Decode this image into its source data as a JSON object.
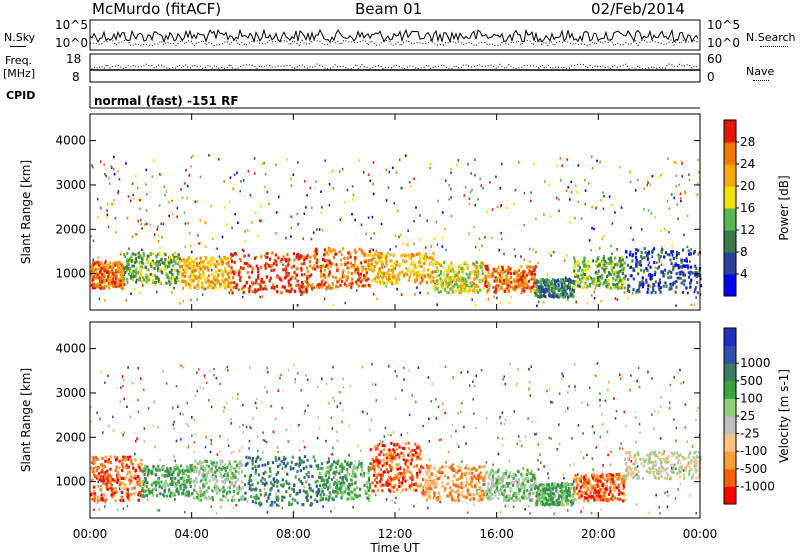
{
  "header": {
    "station": "McMurdo (fitACF)",
    "beam": "Beam 01",
    "date": "02/Feb/2014"
  },
  "left_labels": {
    "nsky": "N.Sky",
    "freq": "Freq.",
    "mhz": "[MHz]",
    "cpid": "CPID"
  },
  "right_labels": {
    "nsearch": "N.Search",
    "nave": "Nave"
  },
  "noise_panel": {
    "ytick_top": "10^5",
    "ytick_bottom": "10^0",
    "rtick_top": "10^5",
    "rtick_bottom": "10^0"
  },
  "freq_panel": {
    "ytick_top": "18",
    "ytick_bottom": "8",
    "rtick_top": "60",
    "rtick_bottom": "0"
  },
  "cpid_text": "normal (fast) -151 RF",
  "colors": {
    "power": [
      "#0000ff",
      "#2a3f9e",
      "#3a7a4a",
      "#59b74f",
      "#f2e000",
      "#f7a800",
      "#f37800",
      "#e21b00"
    ],
    "velocity": [
      "#ff0000",
      "#ff6000",
      "#ff9e30",
      "#ffc080",
      "#c0c0c0",
      "#8fd17a",
      "#3aa63a",
      "#3a8060",
      "#3050b0",
      "#2030c0"
    ],
    "velocity_band": [
      "#ff0000",
      "#ff6000",
      "#ff9e30",
      "#ffc080",
      "#c0c0c0",
      "#8fd17a",
      "#3aa63a",
      "#3a8060",
      "#3050b0",
      "#2030c0"
    ]
  },
  "chart_data": [
    {
      "type": "heatmap",
      "ylabel": "Slant Range [km]",
      "yticks": [
        "1000",
        "2000",
        "3000",
        "4000"
      ],
      "ylim": [
        180,
        4600
      ],
      "xlim": [
        0,
        24
      ],
      "xticks": [
        "00:00",
        "04:00",
        "08:00",
        "12:00",
        "16:00",
        "20:00",
        "00:00"
      ],
      "colorbar": {
        "label": "Power [dB]",
        "ticks": [
          "4",
          "8",
          "12",
          "16",
          "20",
          "24",
          "28"
        ]
      },
      "regions": [
        {
          "x": [
            0,
            1.3
          ],
          "y": [
            700,
            1300
          ],
          "level": 6
        },
        {
          "x": [
            1.3,
            3.5
          ],
          "y": [
            800,
            1500
          ],
          "level": 3
        },
        {
          "x": [
            3.5,
            5.5
          ],
          "y": [
            700,
            1400
          ],
          "level": 5
        },
        {
          "x": [
            5.5,
            8.5
          ],
          "y": [
            600,
            1500
          ],
          "level": 7
        },
        {
          "x": [
            8.5,
            11.0
          ],
          "y": [
            700,
            1600
          ],
          "level": 6
        },
        {
          "x": [
            11.0,
            13.5
          ],
          "y": [
            800,
            1500
          ],
          "level": 5
        },
        {
          "x": [
            13.5,
            15.5
          ],
          "y": [
            600,
            1300
          ],
          "level": 4
        },
        {
          "x": [
            15.5,
            17.5
          ],
          "y": [
            600,
            1200
          ],
          "level": 6
        },
        {
          "x": [
            17.5,
            19.0
          ],
          "y": [
            500,
            900
          ],
          "level": 2
        },
        {
          "x": [
            19.0,
            21.0
          ],
          "y": [
            700,
            1400
          ],
          "level": 3
        },
        {
          "x": [
            21.0,
            24.0
          ],
          "y": [
            600,
            1600
          ],
          "level": 1
        }
      ]
    },
    {
      "type": "heatmap",
      "ylabel": "Slant Range [km]",
      "yticks": [
        "1000",
        "2000",
        "3000",
        "4000"
      ],
      "ylim": [
        180,
        4600
      ],
      "xlim": [
        0,
        24
      ],
      "xticks": [
        "00:00",
        "04:00",
        "08:00",
        "12:00",
        "16:00",
        "20:00",
        "00:00"
      ],
      "xlabel": "Time UT",
      "colorbar": {
        "label": "Velocity [m s-1]",
        "ticks": [
          "-1000",
          "-500",
          "-100",
          "-25",
          "25",
          "100",
          "500",
          "1000"
        ]
      },
      "regions": [
        {
          "x": [
            0,
            2.0
          ],
          "y": [
            600,
            1600
          ],
          "level": 1
        },
        {
          "x": [
            2.0,
            4.0
          ],
          "y": [
            700,
            1400
          ],
          "level": 6
        },
        {
          "x": [
            4.0,
            6.0
          ],
          "y": [
            600,
            1500
          ],
          "level": 5
        },
        {
          "x": [
            6.0,
            9.0
          ],
          "y": [
            500,
            1600
          ],
          "level": 7
        },
        {
          "x": [
            9.0,
            11.0
          ],
          "y": [
            600,
            1500
          ],
          "level": 6
        },
        {
          "x": [
            11.0,
            13.0
          ],
          "y": [
            800,
            1900
          ],
          "level": 1
        },
        {
          "x": [
            13.0,
            15.5
          ],
          "y": [
            600,
            1400
          ],
          "level": 2
        },
        {
          "x": [
            15.5,
            17.5
          ],
          "y": [
            600,
            1300
          ],
          "level": 5
        },
        {
          "x": [
            17.5,
            19.0
          ],
          "y": [
            500,
            1000
          ],
          "level": 6
        },
        {
          "x": [
            19.0,
            21.0
          ],
          "y": [
            600,
            1200
          ],
          "level": 1
        },
        {
          "x": [
            21.0,
            24.0
          ],
          "y": [
            1100,
            1700
          ],
          "level": 4
        }
      ]
    }
  ]
}
